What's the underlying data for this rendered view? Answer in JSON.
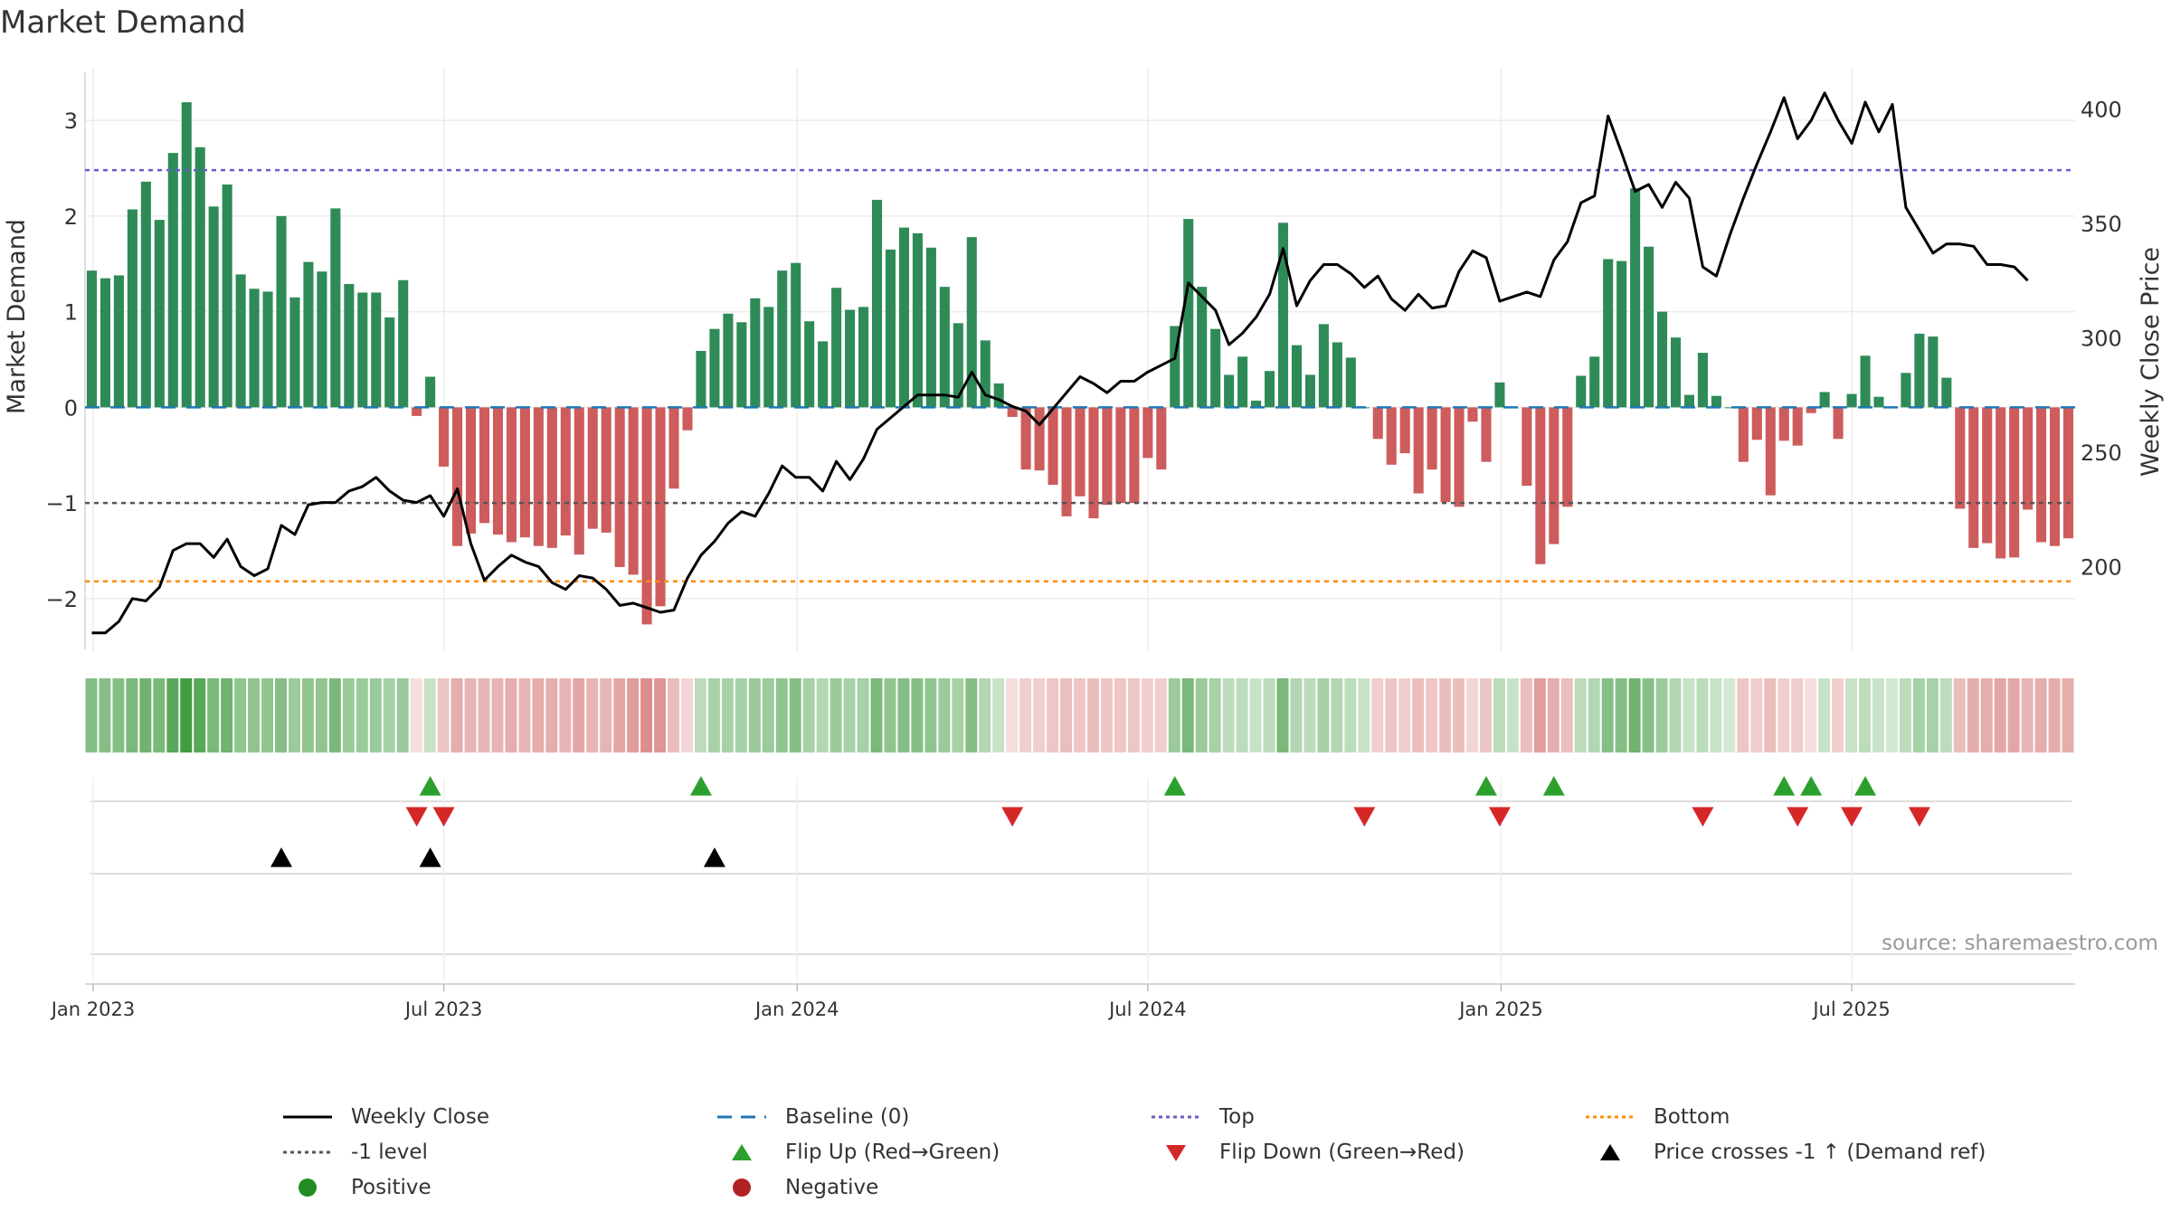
{
  "chart_data": {
    "type": "bar",
    "title": "Market Demand",
    "ylabel": "Market Demand",
    "y2label": "Weekly Close Price",
    "ylim": [
      -2.55,
      3.55
    ],
    "y2lim": [
      163,
      418
    ],
    "yticks": [
      3,
      2,
      1,
      0,
      -1,
      -2
    ],
    "y2ticks": [
      400,
      350,
      300,
      250,
      200
    ],
    "xticks": [
      {
        "label": "Jan 2023",
        "week": 0.6
      },
      {
        "label": "Jul 2023",
        "week": 26.5
      },
      {
        "label": "Jan 2024",
        "week": 52.6
      },
      {
        "label": "Jul 2024",
        "week": 78.5
      },
      {
        "label": "Jan 2025",
        "week": 104.6
      },
      {
        "label": "Jul 2025",
        "week": 130.5
      }
    ],
    "reference_lines": {
      "top": 2.48,
      "minus_one": -1,
      "bottom": -1.82,
      "baseline": 0
    },
    "colors": {
      "positive_bar": "#2e8b57",
      "negative_bar": "#cd5c5c",
      "price": "#000000",
      "top": "#6a5acd",
      "minus_one": "#555555",
      "bottom": "#ff8c00",
      "baseline": "#1f77b4",
      "flip_up": "#2ca02c",
      "flip_down": "#d62728",
      "cross": "#000000",
      "positive": "#228b22",
      "negative": "#b22222"
    },
    "demand": [
      1.43,
      1.35,
      1.38,
      2.07,
      2.36,
      1.96,
      2.66,
      3.19,
      2.72,
      2.1,
      2.33,
      1.39,
      1.24,
      1.21,
      2.0,
      1.15,
      1.52,
      1.42,
      2.08,
      1.29,
      1.2,
      1.2,
      0.94,
      1.33,
      -0.09,
      0.32,
      -0.62,
      -1.45,
      -1.32,
      -1.21,
      -1.33,
      -1.41,
      -1.36,
      -1.45,
      -1.47,
      -1.34,
      -1.54,
      -1.27,
      -1.31,
      -1.67,
      -1.75,
      -2.27,
      -2.08,
      -0.85,
      -0.24,
      0.59,
      0.82,
      0.98,
      0.89,
      1.14,
      1.05,
      1.43,
      1.51,
      0.9,
      0.69,
      1.25,
      1.02,
      1.05,
      2.17,
      1.65,
      1.88,
      1.82,
      1.67,
      1.26,
      0.88,
      1.78,
      0.7,
      0.25,
      -0.1,
      -0.65,
      -0.66,
      -0.81,
      -1.14,
      -0.93,
      -1.16,
      -1.02,
      -1.0,
      -1.0,
      -0.53,
      -0.65,
      0.85,
      1.97,
      1.26,
      0.82,
      0.34,
      0.53,
      0.07,
      0.38,
      1.93,
      0.65,
      0.34,
      0.87,
      0.68,
      0.52,
      0.0,
      -0.33,
      -0.6,
      -0.48,
      -0.9,
      -0.65,
      -0.99,
      -1.04,
      -0.15,
      -0.57,
      0.26,
      0.0,
      -0.82,
      -1.64,
      -1.43,
      -1.04,
      0.33,
      0.53,
      1.55,
      1.53,
      2.29,
      1.68,
      1.0,
      0.73,
      0.13,
      0.57,
      0.12,
      0.0,
      -0.57,
      -0.34,
      -0.92,
      -0.35,
      -0.4,
      -0.06,
      0.16,
      -0.33,
      0.14,
      0.54,
      0.11,
      0.0,
      0.36,
      0.77,
      0.74,
      0.31,
      -1.06,
      -1.47,
      -1.42,
      -1.58,
      -1.57,
      -1.07,
      -1.41,
      -1.45,
      -1.37
    ],
    "price": [
      171,
      171,
      176,
      186,
      185,
      191,
      207,
      210,
      210,
      204,
      212,
      200,
      196,
      199,
      218,
      214,
      227,
      228,
      228,
      233,
      235,
      239,
      233,
      229,
      228,
      231,
      222,
      234,
      210,
      194,
      200,
      205,
      202,
      200,
      193,
      190,
      196,
      195,
      190,
      183,
      184,
      182,
      180,
      181,
      195,
      205,
      211,
      219,
      224,
      222,
      232,
      244,
      239,
      239,
      233,
      246,
      238,
      247,
      260,
      265,
      270,
      275,
      275,
      275,
      274,
      285,
      275,
      273,
      270,
      268,
      262,
      269,
      276,
      283,
      280,
      276,
      281,
      281,
      285,
      288,
      291,
      324,
      318,
      312,
      297,
      302,
      309,
      319,
      339,
      314,
      325,
      332,
      332,
      328,
      322,
      327,
      317,
      312,
      319,
      313,
      314,
      329,
      338,
      335,
      316,
      318,
      320,
      318,
      334,
      342,
      359,
      362,
      397,
      381,
      364,
      367,
      357,
      368,
      361,
      331,
      327,
      345,
      361,
      376,
      390,
      405,
      387,
      395,
      407,
      395,
      385,
      403,
      390,
      402,
      357,
      347,
      337,
      341,
      341,
      340,
      332,
      332,
      331,
      325
    ],
    "heat_alpha": [
      0.55,
      0.55,
      0.55,
      0.6,
      0.65,
      0.6,
      0.75,
      0.85,
      0.75,
      0.6,
      0.65,
      0.5,
      0.5,
      0.5,
      0.55,
      0.45,
      0.5,
      0.5,
      0.6,
      0.45,
      0.45,
      0.45,
      0.4,
      0.45,
      0.2,
      0.25,
      0.35,
      0.5,
      0.45,
      0.45,
      0.45,
      0.5,
      0.45,
      0.5,
      0.5,
      0.45,
      0.55,
      0.45,
      0.45,
      0.55,
      0.6,
      0.7,
      0.65,
      0.4,
      0.25,
      0.3,
      0.4,
      0.4,
      0.4,
      0.45,
      0.45,
      0.5,
      0.55,
      0.4,
      0.35,
      0.45,
      0.4,
      0.4,
      0.6,
      0.5,
      0.55,
      0.55,
      0.5,
      0.45,
      0.4,
      0.55,
      0.35,
      0.25,
      0.2,
      0.3,
      0.3,
      0.35,
      0.4,
      0.35,
      0.4,
      0.35,
      0.35,
      0.35,
      0.3,
      0.3,
      0.45,
      0.6,
      0.45,
      0.4,
      0.3,
      0.3,
      0.25,
      0.3,
      0.6,
      0.35,
      0.3,
      0.4,
      0.35,
      0.3,
      0.25,
      0.3,
      0.35,
      0.3,
      0.4,
      0.35,
      0.4,
      0.4,
      0.25,
      0.35,
      0.3,
      0.25,
      0.4,
      0.6,
      0.5,
      0.4,
      0.3,
      0.35,
      0.55,
      0.55,
      0.65,
      0.55,
      0.45,
      0.35,
      0.25,
      0.3,
      0.25,
      0.2,
      0.35,
      0.3,
      0.4,
      0.3,
      0.3,
      0.2,
      0.25,
      0.3,
      0.25,
      0.3,
      0.25,
      0.2,
      0.3,
      0.4,
      0.4,
      0.3,
      0.4,
      0.5,
      0.5,
      0.55,
      0.55,
      0.45,
      0.5,
      0.5,
      0.5
    ],
    "flip_up_weeks": [
      25.5,
      45.5,
      80.5,
      103.5,
      108.5,
      125.5,
      127.5,
      131.5
    ],
    "flip_down_weeks": [
      24.5,
      26.5,
      68.5,
      94.5,
      104.5,
      119.5,
      126.5,
      130.5,
      135.5
    ],
    "cross_weeks": [
      14.5,
      25.5,
      46.5
    ],
    "source": "source: sharemaestro.com",
    "legend": [
      {
        "key": "weekly_close",
        "label": "Weekly Close"
      },
      {
        "key": "baseline",
        "label": "Baseline (0)"
      },
      {
        "key": "top",
        "label": "Top"
      },
      {
        "key": "bottom",
        "label": "Bottom"
      },
      {
        "key": "minus_one",
        "label": "-1 level"
      },
      {
        "key": "flip_up",
        "label": "Flip Up (Red→Green)"
      },
      {
        "key": "flip_down",
        "label": "Flip Down (Green→Red)"
      },
      {
        "key": "cross",
        "label": "Price crosses -1 ↑ (Demand ref)"
      },
      {
        "key": "positive",
        "label": "Positive"
      },
      {
        "key": "negative",
        "label": "Negative"
      }
    ]
  }
}
